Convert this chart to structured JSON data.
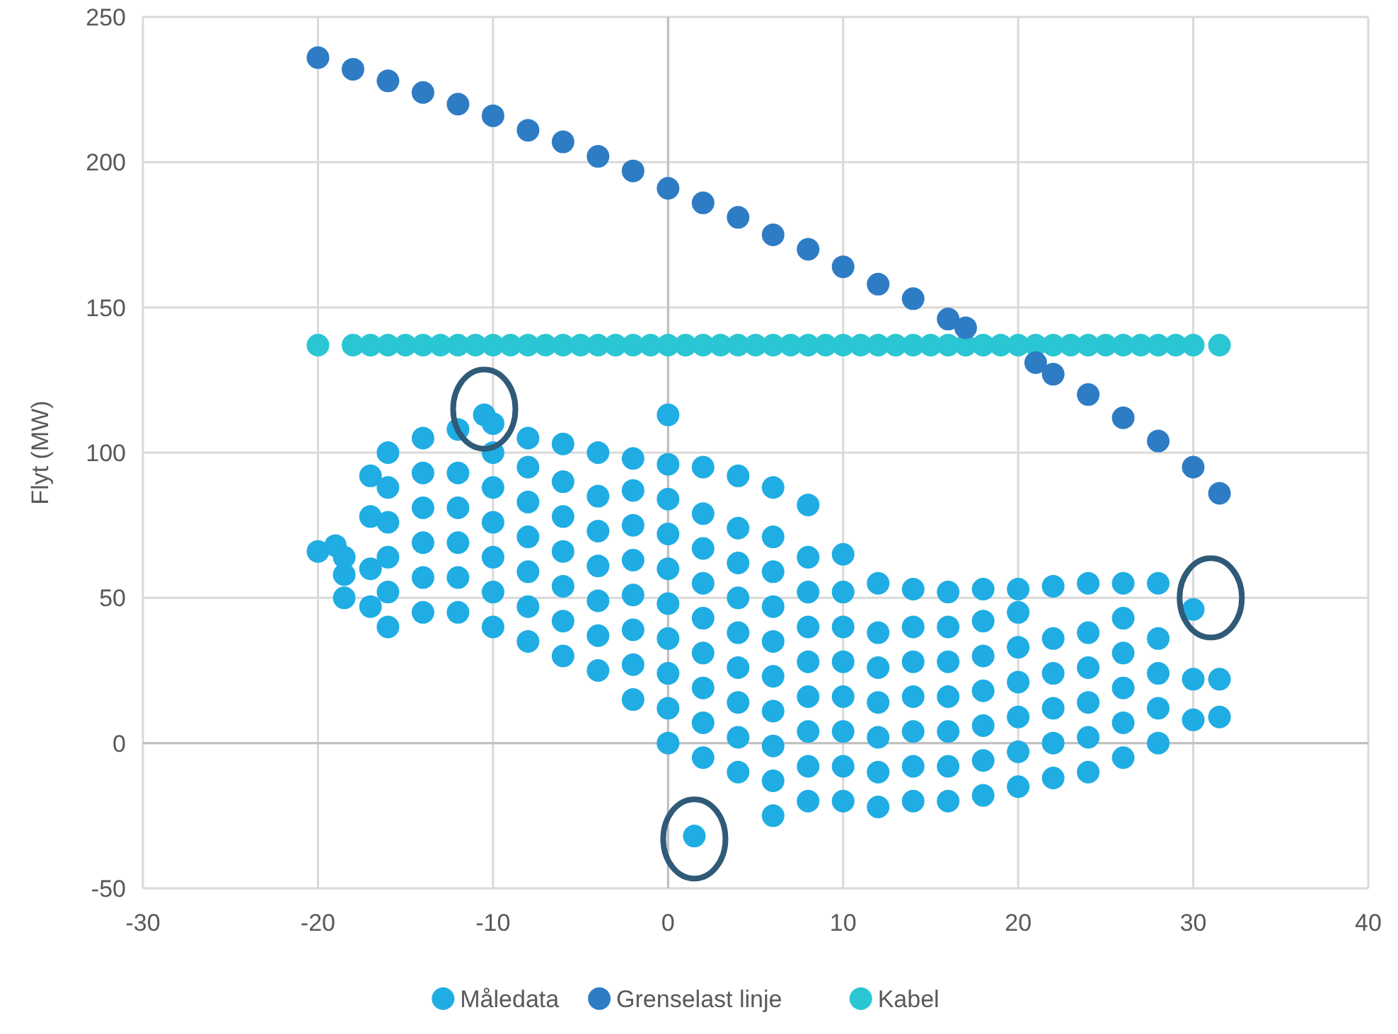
{
  "chart_data": {
    "type": "scatter",
    "ylabel": "Flyt (MW)",
    "xlim": [
      -30,
      40
    ],
    "ylim": [
      -50,
      250
    ],
    "xticks": [
      -30,
      -20,
      -10,
      0,
      10,
      20,
      30,
      40
    ],
    "yticks": [
      -50,
      0,
      50,
      100,
      150,
      200,
      250
    ],
    "grid": true,
    "legend": "bottom",
    "marker": "circle",
    "series": [
      {
        "name": "Måledata",
        "color": "#1fade3",
        "x": [
          -20,
          -19,
          -18.5,
          -18.5,
          -18.5,
          -17,
          -17,
          -17,
          -17,
          -16,
          -16,
          -16,
          -16,
          -16,
          -16,
          -14,
          -14,
          -14,
          -14,
          -14,
          -14,
          -12,
          -12,
          -12,
          -12,
          -12,
          -12,
          -10.5,
          -10,
          -10,
          -10,
          -10,
          -10,
          -10,
          -10,
          -8,
          -8,
          -8,
          -8,
          -8,
          -8,
          -8,
          -6,
          -6,
          -6,
          -6,
          -6,
          -6,
          -6,
          -4,
          -4,
          -4,
          -4,
          -4,
          -4,
          -4,
          -2,
          -2,
          -2,
          -2,
          -2,
          -2,
          -2,
          -2,
          0,
          0,
          0,
          0,
          0,
          0,
          0,
          0,
          0,
          0,
          1.5,
          2,
          2,
          2,
          2,
          2,
          2,
          2,
          2,
          2,
          4,
          4,
          4,
          4,
          4,
          4,
          4,
          4,
          4,
          6,
          6,
          6,
          6,
          6,
          6,
          6,
          6,
          6,
          6,
          8,
          8,
          8,
          8,
          8,
          8,
          8,
          8,
          8,
          10,
          10,
          10,
          10,
          10,
          10,
          10,
          10,
          12,
          12,
          12,
          12,
          12,
          12,
          12,
          14,
          14,
          14,
          14,
          14,
          14,
          14,
          16,
          16,
          16,
          16,
          16,
          16,
          16,
          18,
          18,
          18,
          18,
          18,
          18,
          18,
          20,
          20,
          20,
          20,
          20,
          20,
          20,
          22,
          22,
          22,
          22,
          22,
          22,
          24,
          24,
          24,
          24,
          24,
          24,
          26,
          26,
          26,
          26,
          26,
          26,
          28,
          28,
          28,
          28,
          28,
          30,
          30,
          30,
          31.5,
          31.5
        ],
        "values": [
          66,
          68,
          50,
          58,
          64,
          47,
          60,
          78,
          92,
          40,
          52,
          64,
          76,
          88,
          100,
          45,
          57,
          69,
          81,
          93,
          105,
          45,
          57,
          69,
          81,
          93,
          108,
          113,
          40,
          52,
          64,
          76,
          88,
          100,
          110,
          35,
          47,
          59,
          71,
          83,
          95,
          105,
          30,
          42,
          54,
          66,
          78,
          90,
          103,
          25,
          37,
          49,
          61,
          73,
          85,
          100,
          15,
          27,
          39,
          51,
          63,
          75,
          87,
          98,
          0,
          12,
          24,
          36,
          48,
          60,
          72,
          84,
          96,
          113,
          -32,
          -5,
          7,
          19,
          31,
          43,
          55,
          67,
          79,
          95,
          -10,
          2,
          14,
          26,
          38,
          50,
          62,
          74,
          92,
          -25,
          -13,
          -1,
          11,
          23,
          35,
          47,
          59,
          71,
          88,
          -20,
          -8,
          4,
          16,
          28,
          40,
          52,
          64,
          82,
          -20,
          -8,
          4,
          16,
          28,
          40,
          52,
          65,
          -22,
          -10,
          2,
          14,
          26,
          38,
          55,
          -20,
          -8,
          4,
          16,
          28,
          40,
          53,
          -20,
          -8,
          4,
          16,
          28,
          40,
          52,
          -18,
          -6,
          6,
          18,
          30,
          42,
          53,
          -15,
          -3,
          9,
          21,
          33,
          45,
          53,
          -12,
          0,
          12,
          24,
          36,
          54,
          -10,
          2,
          14,
          26,
          38,
          55,
          -5,
          7,
          19,
          31,
          43,
          55,
          0,
          12,
          24,
          36,
          55,
          8,
          22,
          46,
          9,
          22
        ]
      },
      {
        "name": "Grenselast linje",
        "color": "#2e7cc4",
        "x": [
          -20,
          -18,
          -16,
          -14,
          -12,
          -10,
          -8,
          -6,
          -4,
          -2,
          0,
          2,
          4,
          6,
          8,
          10,
          12,
          14,
          16,
          17,
          21,
          22,
          24,
          26,
          28,
          30,
          31.5
        ],
        "values": [
          236,
          232,
          228,
          224,
          220,
          216,
          211,
          207,
          202,
          197,
          191,
          186,
          181,
          175,
          170,
          164,
          158,
          153,
          146,
          143,
          131,
          127,
          120,
          112,
          104,
          95,
          86
        ]
      },
      {
        "name": "Kabel",
        "color": "#2ac6d3",
        "x": [
          -20,
          -18,
          -17,
          -16,
          -15,
          -14,
          -13,
          -12,
          -11,
          -10,
          -9,
          -8,
          -7,
          -6,
          -5,
          -4,
          -3,
          -2,
          -1,
          0,
          1,
          2,
          3,
          4,
          5,
          6,
          7,
          8,
          9,
          10,
          11,
          12,
          13,
          14,
          15,
          16,
          17,
          18,
          19,
          20,
          21,
          22,
          23,
          24,
          25,
          26,
          27,
          28,
          29,
          30,
          31.5
        ],
        "values": [
          137,
          137,
          137,
          137,
          137,
          137,
          137,
          137,
          137,
          137,
          137,
          137,
          137,
          137,
          137,
          137,
          137,
          137,
          137,
          137,
          137,
          137,
          137,
          137,
          137,
          137,
          137,
          137,
          137,
          137,
          137,
          137,
          137,
          137,
          137,
          137,
          137,
          137,
          137,
          137,
          137,
          137,
          137,
          137,
          137,
          137,
          137,
          137,
          137,
          137,
          137
        ]
      }
    ]
  }
}
